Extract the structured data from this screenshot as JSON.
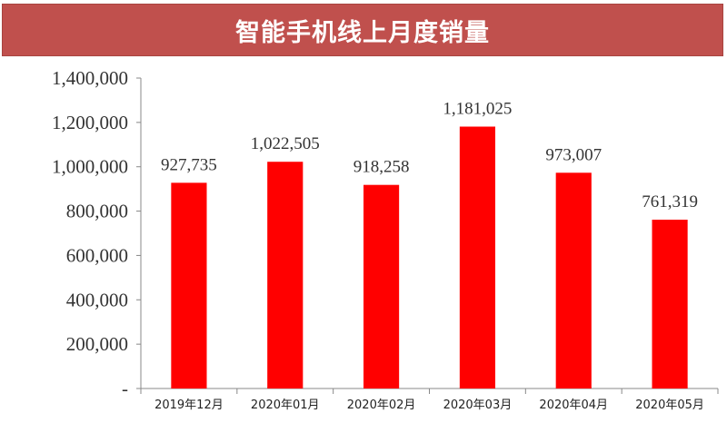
{
  "chart_data": {
    "type": "bar",
    "title": "智能手机线上月度销量",
    "categories": [
      "2019年12月",
      "2020年01月",
      "2020年02月",
      "2020年03月",
      "2020年04月",
      "2020年05月"
    ],
    "values": [
      927735,
      1022505,
      918258,
      1181025,
      973007,
      761319
    ],
    "data_labels": [
      "927,735",
      "1,022,505",
      "918,258",
      "1,181,025",
      "973,007",
      "761,319"
    ],
    "ylim": [
      0,
      1400000
    ],
    "yticks": [
      0,
      200000,
      400000,
      600000,
      800000,
      1000000,
      1200000,
      1400000
    ],
    "ytick_labels": [
      "-",
      "200,000",
      "400,000",
      "600,000",
      "800,000",
      "1,000,000",
      "1,200,000",
      "1,400,000"
    ],
    "xlabel": "",
    "ylabel": "",
    "grid": false,
    "legend": "none",
    "colors": {
      "bar": "#ff0000",
      "title_banner": "#c0504d",
      "title_text": "#ffffff",
      "axis": "#888888"
    }
  }
}
